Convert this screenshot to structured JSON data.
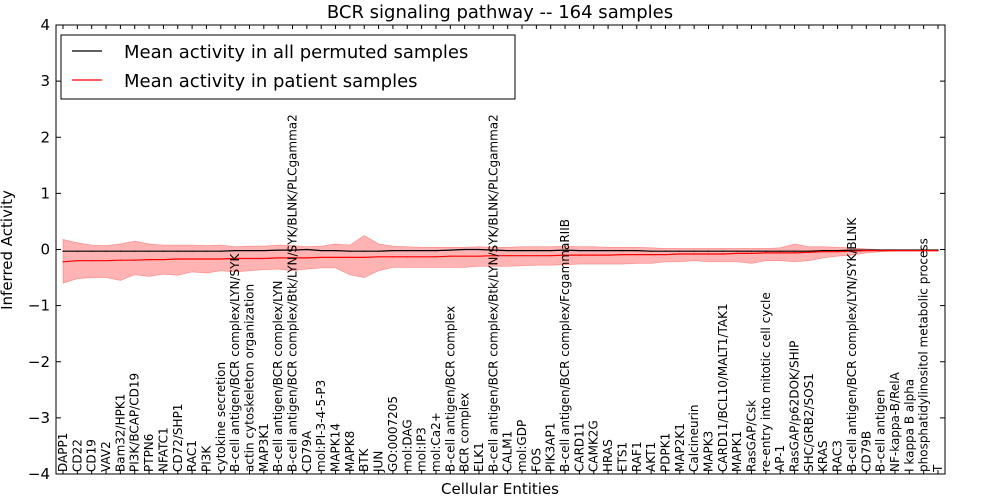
{
  "chart_data": {
    "type": "line",
    "title": "BCR signaling pathway -- 164 samples",
    "xlabel": "Cellular Entities",
    "ylabel": "Inferred Activity",
    "ylim": [
      -4,
      4
    ],
    "yticks": [
      -4,
      -3,
      -2,
      -1,
      0,
      1,
      2,
      3,
      4
    ],
    "ytick_labels": [
      "−4",
      "−3",
      "−2",
      "−1",
      "0",
      "1",
      "2",
      "3",
      "4"
    ],
    "legend_position": "top-left",
    "colors": {
      "permuted": "#000000",
      "patient": "#ff0000",
      "band": "#ff9999"
    },
    "categories": [
      "DAPP1",
      "CD22",
      "CD19",
      "VAV2",
      "Bam32/HPK1",
      "PI3K/BCAP/CD19",
      "PTPN6",
      "NFATC1",
      "CD72/SHP1",
      "RAC1",
      "PI3K",
      "cytokine secretion",
      "B-cell antigen/BCR complex/LYN/SYK",
      "actin cytoskeleton organization",
      "MAP3K1",
      "B-cell antigen/BCR complex/LYN",
      "B-cell antigen/BCR complex/Btk/LYN/SYK/BLNK/PLCgamma2",
      "CD79A",
      "mol:PI-3-4-5-P3",
      "MAPK14",
      "MAPK8",
      "BTK",
      "JUN",
      "GO:0007205",
      "mol:DAG",
      "mol:IP3",
      "mol:Ca2+",
      "B-cell antigen/BCR complex",
      "BCR complex",
      "ELK1",
      "B-cell antigen/BCR complex/Btk/LYN/SYK/BLNK/PLCgamma2",
      "CALM1",
      "mol:GDP",
      "FOS",
      "PIK3AP1",
      "B-cell antigen/BCR complex/FcgammaRIIB",
      "CARD11",
      "CAMK2G",
      "HRAS",
      "ETS1",
      "RAF1",
      "AKT1",
      "PDPK1",
      "MAP2K1",
      "Calcineurin",
      "MAPK3",
      "CARD11/BCL10/MALT1/TAK1",
      "MAPK1",
      "RasGAP/Csk",
      "re-entry into mitotic cell cycle",
      "AP-1",
      "RasGAP/p62DOK/SHIP",
      "SHC/GRB2/SOS1",
      "KRAS",
      "RAC3",
      "B-cell antigen/BCR complex/LYN/SYK/BLNK",
      "CD79B",
      "B-cell antigen",
      "NF-kappa-B/RelA",
      "I kappa B alpha",
      "phosphatidylinositol metabolic process",
      "T"
    ],
    "series": [
      {
        "name": "Mean activity in all permuted samples",
        "values": [
          -0.03,
          -0.03,
          -0.03,
          -0.03,
          -0.03,
          -0.03,
          -0.03,
          -0.03,
          -0.03,
          -0.03,
          -0.03,
          -0.03,
          -0.02,
          -0.02,
          -0.02,
          -0.01,
          -0.01,
          0.0,
          -0.02,
          -0.02,
          -0.03,
          -0.03,
          -0.03,
          -0.02,
          -0.02,
          -0.02,
          -0.02,
          -0.01,
          0.0,
          0.0,
          -0.01,
          -0.02,
          -0.02,
          -0.02,
          -0.02,
          -0.01,
          -0.02,
          -0.02,
          -0.02,
          -0.02,
          -0.02,
          -0.03,
          -0.03,
          -0.03,
          -0.03,
          -0.03,
          -0.03,
          -0.03,
          -0.03,
          -0.03,
          -0.03,
          -0.03,
          -0.03,
          -0.02,
          -0.02,
          -0.01,
          -0.01,
          -0.01,
          -0.01,
          -0.01,
          -0.01,
          -0.01
        ]
      },
      {
        "name": "Mean activity in patient samples",
        "values": [
          -0.22,
          -0.2,
          -0.2,
          -0.2,
          -0.19,
          -0.19,
          -0.18,
          -0.18,
          -0.17,
          -0.17,
          -0.17,
          -0.17,
          -0.16,
          -0.16,
          -0.16,
          -0.15,
          -0.15,
          -0.15,
          -0.14,
          -0.14,
          -0.14,
          -0.14,
          -0.13,
          -0.13,
          -0.13,
          -0.13,
          -0.13,
          -0.12,
          -0.12,
          -0.12,
          -0.11,
          -0.11,
          -0.11,
          -0.11,
          -0.11,
          -0.1,
          -0.1,
          -0.1,
          -0.1,
          -0.09,
          -0.09,
          -0.09,
          -0.09,
          -0.08,
          -0.08,
          -0.08,
          -0.08,
          -0.07,
          -0.07,
          -0.06,
          -0.06,
          -0.06,
          -0.05,
          -0.04,
          -0.04,
          -0.03,
          -0.02,
          -0.02,
          -0.02,
          -0.02,
          -0.02,
          -0.02
        ]
      }
    ],
    "band": {
      "name": "patient samples spread",
      "upper": [
        0.18,
        0.12,
        0.08,
        0.07,
        0.1,
        0.15,
        0.1,
        0.08,
        0.08,
        0.08,
        0.07,
        0.08,
        0.05,
        0.06,
        0.06,
        0.08,
        0.07,
        0.05,
        0.06,
        0.1,
        0.08,
        0.25,
        0.1,
        0.06,
        0.05,
        0.04,
        0.04,
        0.04,
        0.04,
        0.05,
        0.04,
        0.04,
        0.05,
        0.05,
        0.05,
        0.06,
        0.05,
        0.05,
        0.04,
        0.04,
        0.04,
        0.03,
        0.02,
        0.02,
        0.02,
        0.02,
        0.02,
        0.02,
        0.02,
        0.02,
        0.03,
        0.1,
        0.05,
        0.05,
        0.04,
        0.03,
        0.01,
        0.0,
        0.0,
        0.0,
        0.0,
        0.0
      ],
      "lower": [
        -0.6,
        -0.52,
        -0.5,
        -0.5,
        -0.55,
        -0.45,
        -0.48,
        -0.44,
        -0.46,
        -0.4,
        -0.42,
        -0.38,
        -0.4,
        -0.38,
        -0.36,
        -0.35,
        -0.38,
        -0.35,
        -0.33,
        -0.33,
        -0.45,
        -0.5,
        -0.38,
        -0.32,
        -0.32,
        -0.32,
        -0.32,
        -0.32,
        -0.32,
        -0.3,
        -0.3,
        -0.3,
        -0.29,
        -0.28,
        -0.28,
        -0.27,
        -0.26,
        -0.26,
        -0.26,
        -0.26,
        -0.25,
        -0.25,
        -0.22,
        -0.22,
        -0.2,
        -0.22,
        -0.22,
        -0.22,
        -0.25,
        -0.2,
        -0.2,
        -0.22,
        -0.2,
        -0.15,
        -0.12,
        -0.1,
        -0.06,
        -0.04,
        -0.03,
        -0.03,
        -0.03,
        -0.03
      ]
    }
  }
}
